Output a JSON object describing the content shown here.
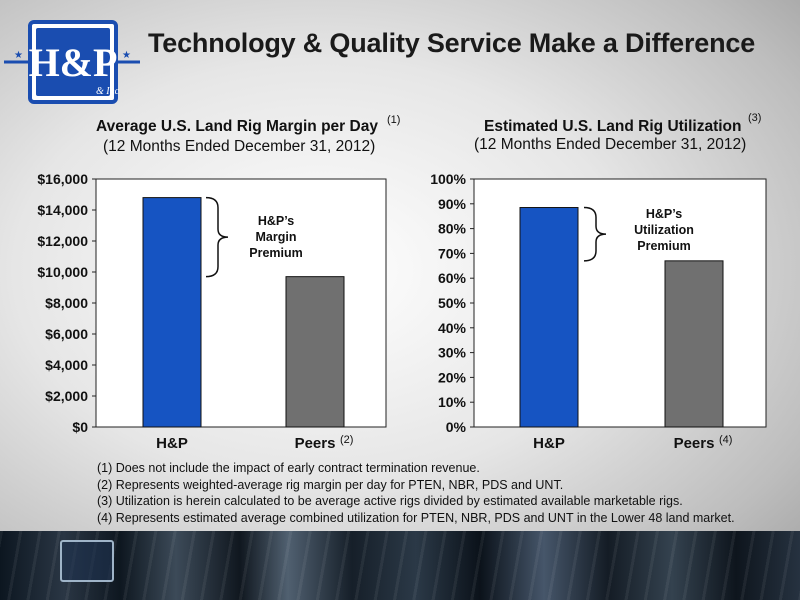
{
  "slide": {
    "title": "Technology & Quality Service Make a Difference",
    "logo_text": "H&P",
    "logo_small": "& Inc"
  },
  "colors": {
    "hp_bar": "#1654c2",
    "peers_bar": "#707070",
    "logo_blue": "#1a4db0"
  },
  "chart_data": [
    {
      "type": "bar",
      "title": "Average U.S. Land Rig Margin per Day",
      "title_sup": "(1)",
      "subtitle": "(12 Months Ended December 31, 2012)",
      "categories": [
        "H&P",
        "Peers"
      ],
      "category_sups": [
        "",
        "(2)"
      ],
      "values": [
        14800,
        9700
      ],
      "ylim": [
        0,
        16000
      ],
      "yticks": [
        0,
        2000,
        4000,
        6000,
        8000,
        10000,
        12000,
        14000,
        16000
      ],
      "ytick_labels": [
        "$0",
        "$2,000",
        "$4,000",
        "$6,000",
        "$8,000",
        "$10,000",
        "$12,000",
        "$14,000",
        "$16,000"
      ],
      "annotation": [
        "H&P’s",
        "Margin",
        "Premium"
      ],
      "grid": false
    },
    {
      "type": "bar",
      "title": "Estimated U.S. Land Rig Utilization",
      "title_sup": "(3)",
      "subtitle": "(12 Months Ended December 31, 2012)",
      "categories": [
        "H&P",
        "Peers"
      ],
      "category_sups": [
        "",
        "(4)"
      ],
      "values": [
        88.5,
        67
      ],
      "ylim": [
        0,
        100
      ],
      "yticks": [
        0,
        10,
        20,
        30,
        40,
        50,
        60,
        70,
        80,
        90,
        100
      ],
      "ytick_labels": [
        "0%",
        "10%",
        "20%",
        "30%",
        "40%",
        "50%",
        "60%",
        "70%",
        "80%",
        "90%",
        "100%"
      ],
      "annotation": [
        "H&P’s",
        "Utilization",
        "Premium"
      ],
      "grid": false
    }
  ],
  "footnotes": [
    "(1) Does not include the impact of early contract termination revenue.",
    "(2) Represents weighted-average rig margin per day for PTEN, NBR, PDS and UNT.",
    "(3) Utilization is herein calculated to be average active rigs divided by estimated available marketable rigs.",
    "(4) Represents estimated average combined utilization for PTEN, NBR, PDS and UNT in the Lower 48 land market."
  ]
}
